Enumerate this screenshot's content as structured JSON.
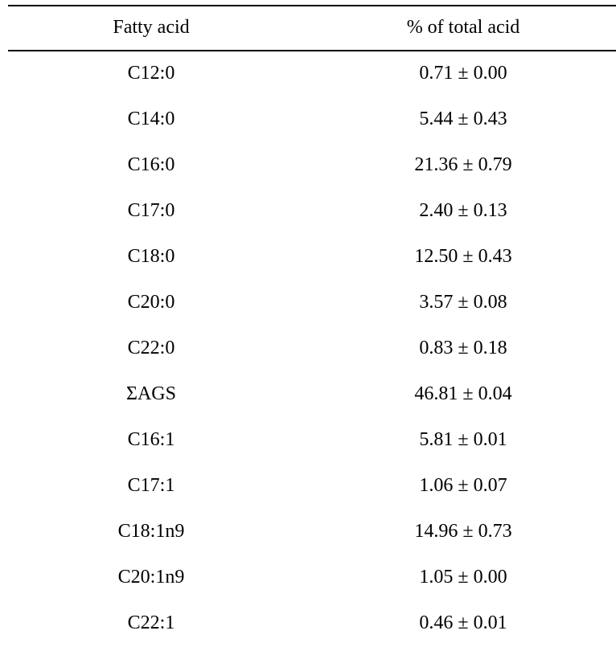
{
  "table": {
    "headers": [
      "Fatty acid",
      "% of total acid"
    ],
    "rows": [
      [
        "C12:0",
        "0.71 ± 0.00"
      ],
      [
        "C14:0",
        "5.44 ± 0.43"
      ],
      [
        "C16:0",
        "21.36 ± 0.79"
      ],
      [
        "C17:0",
        "2.40 ± 0.13"
      ],
      [
        "C18:0",
        "12.50 ± 0.43"
      ],
      [
        "C20:0",
        "3.57 ± 0.08"
      ],
      [
        "C22:0",
        "0.83 ± 0.18"
      ],
      [
        "ΣAGS",
        "46.81 ± 0.04"
      ],
      [
        "C16:1",
        "5.81 ± 0.01"
      ],
      [
        "C17:1",
        "1.06 ± 0.07"
      ],
      [
        "C18:1n9",
        "14.96 ± 0.73"
      ],
      [
        "C20:1n9",
        "1.05 ± 0.00"
      ],
      [
        "C22:1",
        "0.46 ± 0.01"
      ]
    ]
  }
}
